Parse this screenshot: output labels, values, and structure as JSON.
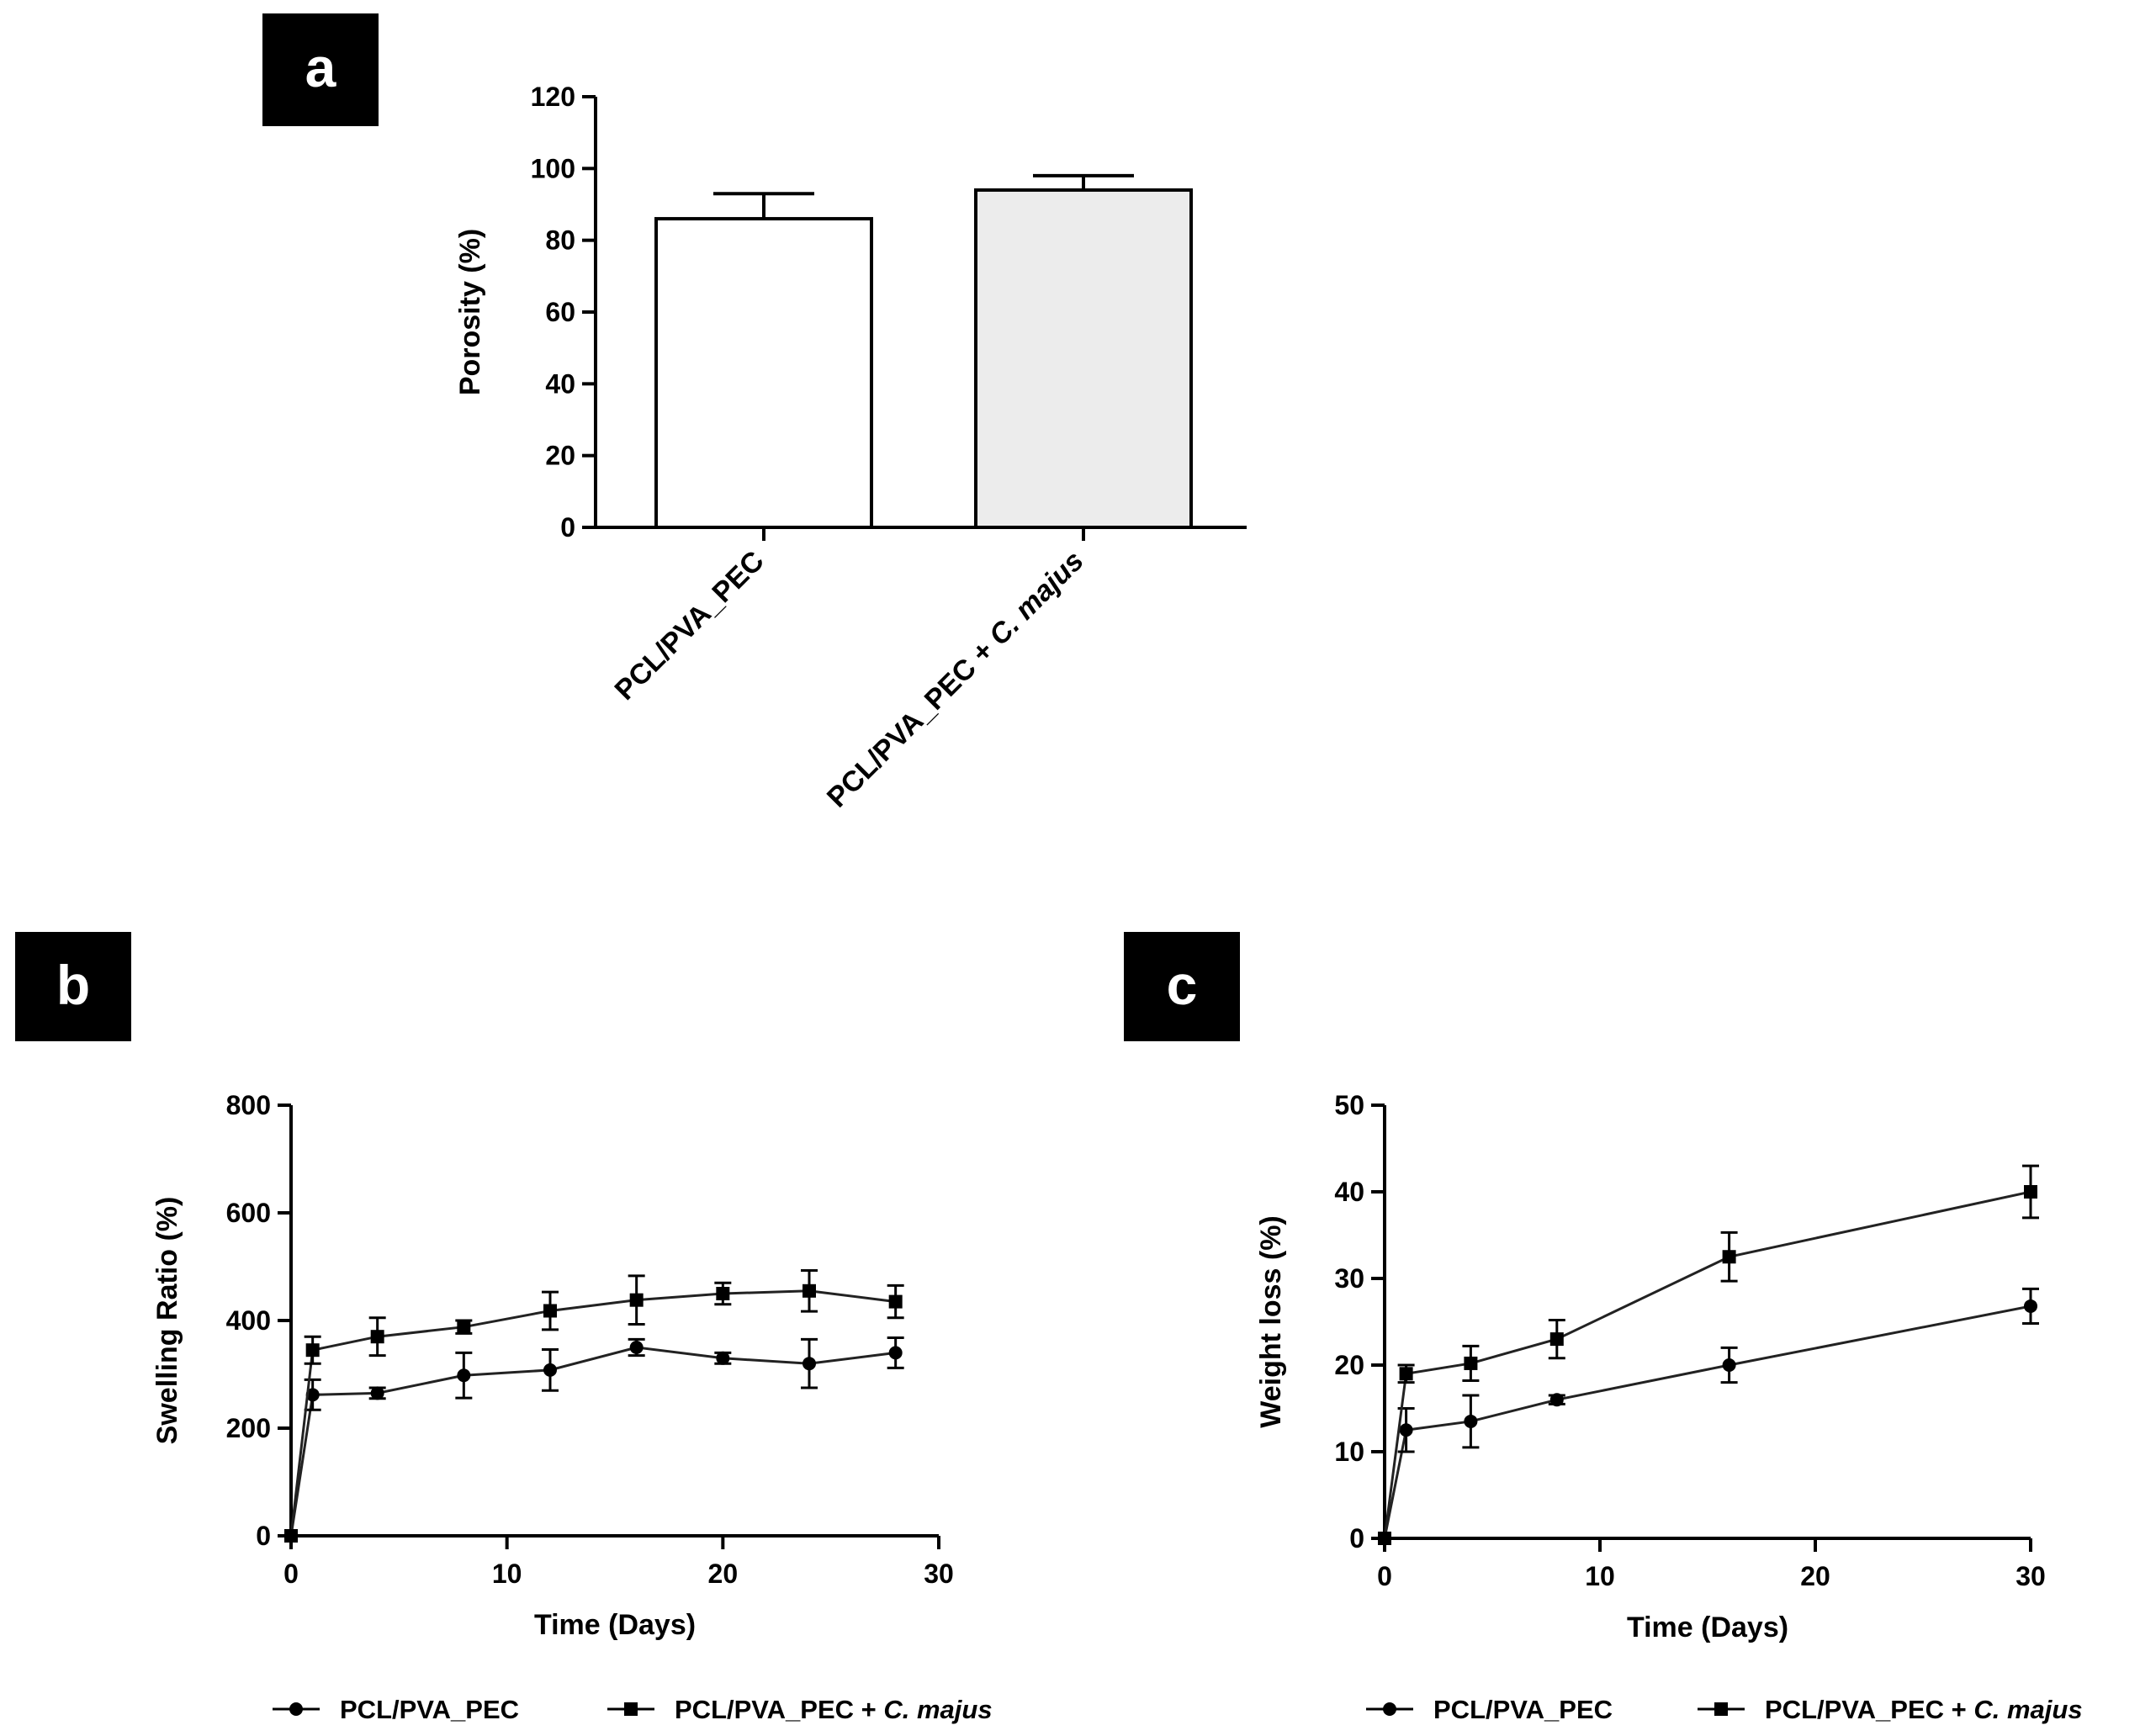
{
  "chart_data": [
    {
      "panel": "a",
      "type": "bar",
      "categories": [
        "PCL/PVA_PEC",
        "PCL/PVA_PEC + C. majus"
      ],
      "category_parts": [
        {
          "plain": "PCL/PVA_PEC",
          "italic": ""
        },
        {
          "plain": "PCL/PVA_PEC + ",
          "italic": "C. majus"
        }
      ],
      "values": [
        86,
        94
      ],
      "errors": [
        7,
        4
      ],
      "bar_colors": [
        "#ffffff",
        "#ececec"
      ],
      "ylabel": "Porosity (%)",
      "xlabel": "",
      "ylim": [
        0,
        120
      ],
      "yticks": [
        0,
        20,
        40,
        60,
        80,
        100,
        120
      ]
    },
    {
      "panel": "b",
      "type": "line",
      "xlabel": "Time (Days)",
      "ylabel": "Swelling Ratio (%)",
      "xlim": [
        0,
        30
      ],
      "ylim": [
        0,
        800
      ],
      "xticks": [
        0,
        10,
        20,
        30
      ],
      "yticks": [
        0,
        200,
        400,
        600,
        800
      ],
      "series": [
        {
          "name": "PCL/PVA_PEC",
          "marker": "circle",
          "x": [
            0,
            1,
            4,
            8,
            12,
            16,
            20,
            24,
            28
          ],
          "y": [
            0,
            262,
            265,
            298,
            308,
            350,
            330,
            320,
            340
          ],
          "err": [
            0,
            28,
            10,
            42,
            38,
            15,
            10,
            45,
            28
          ]
        },
        {
          "name": "PCL/PVA_PEC + C. majus",
          "name_plain": "PCL/PVA_PEC + ",
          "name_italic": "C. majus",
          "marker": "square",
          "x": [
            0,
            1,
            4,
            8,
            12,
            16,
            20,
            24,
            28
          ],
          "y": [
            0,
            345,
            370,
            388,
            418,
            438,
            450,
            455,
            435
          ],
          "err": [
            0,
            25,
            35,
            12,
            35,
            45,
            20,
            38,
            30
          ]
        }
      ],
      "legend": "bottom"
    },
    {
      "panel": "c",
      "type": "line",
      "xlabel": "Time (Days)",
      "ylabel": "Weight loss  (%)",
      "xlim": [
        0,
        30
      ],
      "ylim": [
        0,
        50
      ],
      "xticks": [
        0,
        10,
        20,
        30
      ],
      "yticks": [
        0,
        10,
        20,
        30,
        40,
        50
      ],
      "series": [
        {
          "name": "PCL/PVA_PEC",
          "marker": "circle",
          "x": [
            0,
            1,
            4,
            8,
            16,
            30
          ],
          "y": [
            0,
            12.5,
            13.5,
            16.0,
            20.0,
            26.8
          ],
          "err": [
            0,
            2.5,
            3.0,
            0.5,
            2.0,
            2.0
          ]
        },
        {
          "name": "PCL/PVA_PEC + C. majus",
          "name_plain": "PCL/PVA_PEC + ",
          "name_italic": "C. majus",
          "marker": "square",
          "x": [
            0,
            1,
            4,
            8,
            16,
            30
          ],
          "y": [
            0,
            19.0,
            20.2,
            23.0,
            32.5,
            40.0
          ],
          "err": [
            0,
            1.0,
            2.0,
            2.2,
            2.8,
            3.0
          ]
        }
      ],
      "legend": "bottom"
    }
  ]
}
